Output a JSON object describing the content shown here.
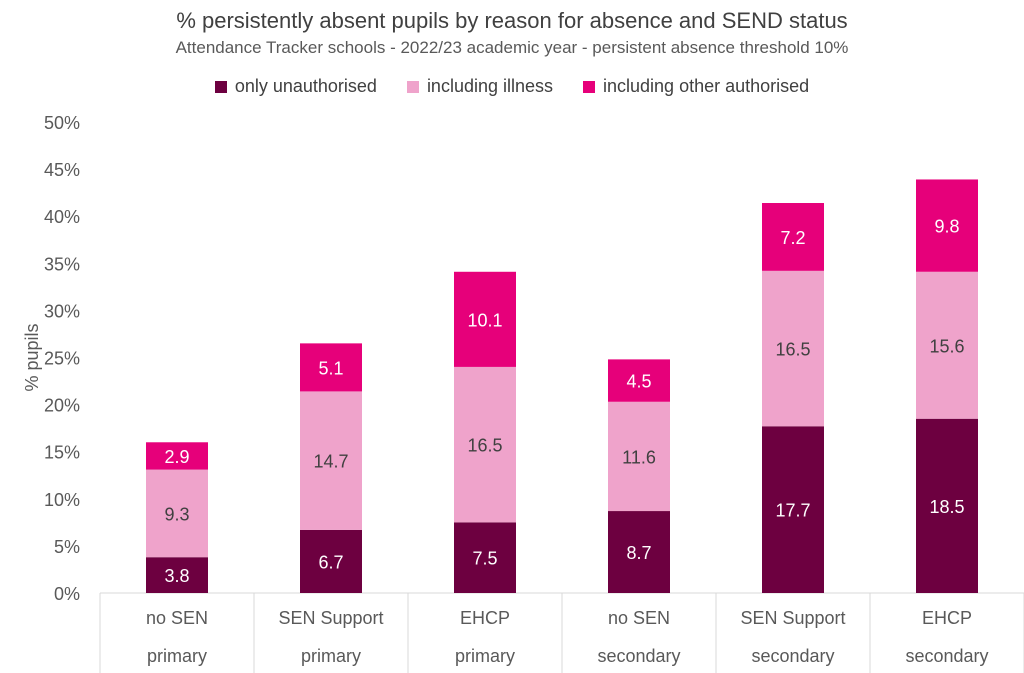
{
  "chart_data": {
    "type": "bar",
    "stacked": true,
    "title": "% persistently absent pupils by reason for absence and SEND status",
    "subtitle": "Attendance Tracker schools - 2022/23 academic year - persistent absence threshold 10%",
    "ylabel": "% pupils",
    "xlabel": "",
    "ylim": [
      0,
      50
    ],
    "yticks": [
      "0%",
      "5%",
      "10%",
      "15%",
      "20%",
      "25%",
      "30%",
      "35%",
      "40%",
      "45%",
      "50%"
    ],
    "categories": [
      [
        "no SEN",
        "primary"
      ],
      [
        "SEN Support",
        "primary"
      ],
      [
        "EHCP",
        "primary"
      ],
      [
        "no SEN",
        "secondary"
      ],
      [
        "SEN Support",
        "secondary"
      ],
      [
        "EHCP",
        "secondary"
      ]
    ],
    "series": [
      {
        "name": "only unauthorised",
        "color": "#6d0040",
        "label_color": "#ffffff",
        "values": [
          3.8,
          6.7,
          7.5,
          8.7,
          17.7,
          18.5
        ]
      },
      {
        "name": "including illness",
        "color": "#efa3cb",
        "label_color": "#404040",
        "values": [
          9.3,
          14.7,
          16.5,
          11.6,
          16.5,
          15.6
        ]
      },
      {
        "name": "including other authorised",
        "color": "#e6007a",
        "label_color": "#ffffff",
        "values": [
          2.9,
          5.1,
          10.1,
          4.5,
          7.2,
          9.8
        ]
      }
    ],
    "legend_position": "top",
    "grid": false
  }
}
